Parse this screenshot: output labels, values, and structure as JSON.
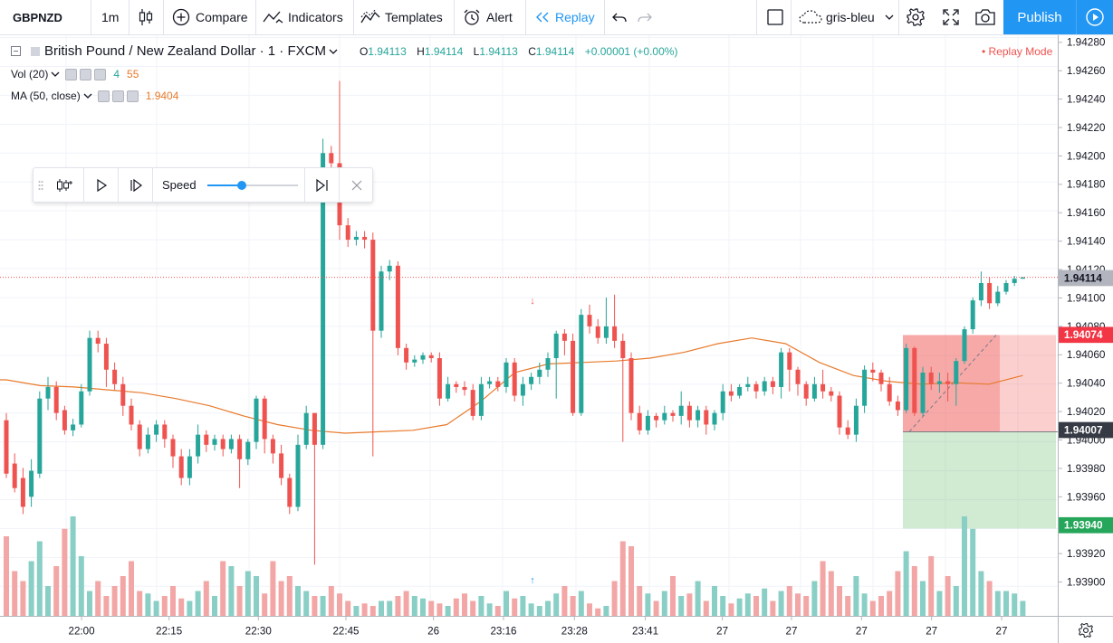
{
  "toolbar": {
    "symbol": "GBPNZD",
    "interval": "1m",
    "compare_label": "Compare",
    "indicators_label": "Indicators",
    "templates_label": "Templates",
    "alert_label": "Alert",
    "replay_label": "Replay",
    "layout_name": "gris-bleu",
    "publish_label": "Publish"
  },
  "legend": {
    "title": "British Pound / New Zealand Dollar · 1 · FXCM",
    "open_key": "O",
    "open": "1.94113",
    "high_key": "H",
    "high": "1.94114",
    "low_key": "L",
    "low": "1.94113",
    "close_key": "C",
    "close": "1.94114",
    "change": "+0.00001 (+0.00%)",
    "vol_label": "Vol (20)",
    "vol_value_1": "4",
    "vol_value_2": "55",
    "ma_label": "MA (50, close)",
    "ma_value": "1.9404",
    "replay_mode": "• Replay Mode"
  },
  "replay_panel": {
    "speed_label": "Speed",
    "speed_level": 0.38
  },
  "colors": {
    "up": "#26a69a",
    "down": "#ef5350",
    "up_vol": "#89cfc5",
    "down_vol": "#f2a6a5",
    "ma": "#e87a2b",
    "accent": "#2196f3"
  },
  "chart_data": {
    "type": "candlestick",
    "symbol": "GBPNZD",
    "interval": "1m",
    "ylim": [
      1.93872,
      1.94296
    ],
    "price_ticks": [
      "1.94280",
      "1.94260",
      "1.94240",
      "1.94220",
      "1.94200",
      "1.94180",
      "1.94160",
      "1.94140",
      "1.94120",
      "1.94100",
      "1.94080",
      "1.94060",
      "1.94040",
      "1.94020",
      "1.94000",
      "1.93980",
      "1.93960",
      "1.93940",
      "1.93920",
      "1.93900"
    ],
    "time_ticks": [
      "22:00",
      "22:15",
      "22:30",
      "22:45",
      "26",
      "23:16",
      "23:28",
      "23:41",
      "27",
      "27",
      "27",
      "27",
      "27"
    ],
    "price_labels": {
      "current": "1.94114",
      "stop": "1.94074",
      "entry": "1.94007",
      "target": "1.93940"
    },
    "position": {
      "entry": 1.94007,
      "stop": 1.94074,
      "target": 1.9394
    },
    "ma_series": [
      1.94043,
      1.94039,
      1.94038,
      1.94036,
      1.94034,
      1.9403,
      1.94025,
      1.94018,
      1.94012,
      1.94008,
      1.94006,
      1.94007,
      1.94008,
      1.94012,
      1.94028,
      1.94048,
      1.94054,
      1.94055,
      1.94056,
      1.94058,
      1.94062,
      1.94068,
      1.94072,
      1.94068,
      1.94055,
      1.94046,
      1.94042,
      1.9404,
      1.94041,
      1.9404,
      1.94046
    ],
    "candles": [
      [
        1.94015,
        1.93978,
        1.9402,
        1.93975
      ],
      [
        1.93985,
        1.93968,
        1.93992,
        1.93965
      ],
      [
        1.93975,
        1.93955,
        1.93982,
        1.9395
      ],
      [
        1.93962,
        1.9398,
        1.93988,
        1.93955
      ],
      [
        1.93978,
        1.9403,
        1.94035,
        1.93975
      ],
      [
        1.9403,
        1.94038,
        1.94045,
        1.94022
      ],
      [
        1.94038,
        1.9402,
        1.94042,
        1.94015
      ],
      [
        1.94022,
        1.94008,
        1.94025,
        1.94005
      ],
      [
        1.94008,
        1.94012,
        1.94016,
        1.94004
      ],
      [
        1.94012,
        1.94035,
        1.9404,
        1.9401
      ],
      [
        1.94035,
        1.94072,
        1.94077,
        1.94032
      ],
      [
        1.94072,
        1.94068,
        1.94077,
        1.94062
      ],
      [
        1.94068,
        1.9405,
        1.94072,
        1.94038
      ],
      [
        1.9405,
        1.9404,
        1.94055,
        1.94036
      ],
      [
        1.9404,
        1.94025,
        1.94045,
        1.94018
      ],
      [
        1.94025,
        1.94012,
        1.9403,
        1.94008
      ],
      [
        1.94012,
        1.93995,
        1.94015,
        1.9399
      ],
      [
        1.93995,
        1.94005,
        1.9401,
        1.93992
      ],
      [
        1.94005,
        1.94012,
        1.94015,
        1.94
      ],
      [
        1.94012,
        1.94002,
        1.94015,
        1.93996
      ],
      [
        1.94002,
        1.9399,
        1.94005,
        1.93982
      ],
      [
        1.9399,
        1.93975,
        1.93995,
        1.9397
      ],
      [
        1.93975,
        1.9399,
        1.93995,
        1.9397
      ],
      [
        1.9399,
        1.94005,
        1.94012,
        1.93985
      ],
      [
        1.94005,
        1.93998,
        1.94008,
        1.93993
      ],
      [
        1.93998,
        1.94002,
        1.94005,
        1.93994
      ],
      [
        1.94002,
        1.93995,
        1.94005,
        1.9399
      ],
      [
        1.93995,
        1.94002,
        1.94005,
        1.93992
      ],
      [
        1.94002,
        1.93988,
        1.94005,
        1.93968
      ],
      [
        1.93988,
        1.94,
        1.94002,
        1.93984
      ],
      [
        1.94,
        1.9403,
        1.94032,
        1.93995
      ],
      [
        1.9403,
        1.94002,
        1.94032,
        1.93992
      ],
      [
        1.94002,
        1.93992,
        1.94005,
        1.93985
      ],
      [
        1.93992,
        1.93975,
        1.93998,
        1.9397
      ],
      [
        1.93975,
        1.93955,
        1.93978,
        1.9395
      ],
      [
        1.93955,
        1.93998,
        1.94005,
        1.93952
      ],
      [
        1.93998,
        1.9402,
        1.94025,
        1.93995
      ],
      [
        1.9402,
        1.93998,
        1.9402,
        1.93915
      ],
      [
        1.93998,
        1.942,
        1.9421,
        1.93995
      ],
      [
        1.942,
        1.94193,
        1.94205,
        1.94185
      ],
      [
        1.94193,
        1.9415,
        1.9425,
        1.9414
      ],
      [
        1.9415,
        1.9414,
        1.94155,
        1.94135
      ],
      [
        1.9414,
        1.94142,
        1.94146,
        1.94136
      ],
      [
        1.94142,
        1.9414,
        1.94146,
        1.94134
      ],
      [
        1.9414,
        1.94077,
        1.94145,
        1.9399
      ],
      [
        1.94077,
        1.94118,
        1.94122,
        1.94072
      ],
      [
        1.94118,
        1.94122,
        1.94126,
        1.94112
      ],
      [
        1.94122,
        1.94065,
        1.94125,
        1.9406
      ],
      [
        1.94065,
        1.94055,
        1.94068,
        1.9405
      ],
      [
        1.94055,
        1.94057,
        1.9406,
        1.94052
      ],
      [
        1.94057,
        1.9406,
        1.94062,
        1.94054
      ],
      [
        1.9406,
        1.94058,
        1.94062,
        1.94055
      ],
      [
        1.94058,
        1.9403,
        1.94062,
        1.94025
      ],
      [
        1.9403,
        1.9404,
        1.94045,
        1.94028
      ],
      [
        1.9404,
        1.94038,
        1.94042,
        1.94034
      ],
      [
        1.94038,
        1.94036,
        1.94042,
        1.94032
      ],
      [
        1.94036,
        1.94018,
        1.9404,
        1.94015
      ],
      [
        1.94018,
        1.9404,
        1.94045,
        1.94015
      ],
      [
        1.9404,
        1.94042,
        1.94045,
        1.94037
      ],
      [
        1.94042,
        1.94038,
        1.94045,
        1.94035
      ],
      [
        1.94038,
        1.94055,
        1.94058,
        1.94034
      ],
      [
        1.94055,
        1.94032,
        1.94058,
        1.94028
      ],
      [
        1.94032,
        1.9404,
        1.94045,
        1.94025
      ],
      [
        1.9404,
        1.94045,
        1.94048,
        1.94036
      ],
      [
        1.94045,
        1.9405,
        1.94055,
        1.9404
      ],
      [
        1.9405,
        1.94058,
        1.94062,
        1.94045
      ],
      [
        1.94058,
        1.94075,
        1.94077,
        1.9403
      ],
      [
        1.94075,
        1.9407,
        1.94078,
        1.9406
      ],
      [
        1.9407,
        1.9402,
        1.94075,
        1.94018
      ],
      [
        1.9402,
        1.94088,
        1.94092,
        1.94018
      ],
      [
        1.94088,
        1.9408,
        1.94095,
        1.94075
      ],
      [
        1.9408,
        1.94072,
        1.94085,
        1.94068
      ],
      [
        1.94072,
        1.9408,
        1.941,
        1.94068
      ],
      [
        1.9408,
        1.9407,
        1.94102,
        1.94065
      ],
      [
        1.9407,
        1.94058,
        1.94075,
        1.94
      ],
      [
        1.94058,
        1.9402,
        1.94062,
        1.94015
      ],
      [
        1.9402,
        1.94008,
        1.94025,
        1.94005
      ],
      [
        1.94008,
        1.94018,
        1.94022,
        1.94005
      ],
      [
        1.94018,
        1.94015,
        1.9402,
        1.9401
      ],
      [
        1.94015,
        1.9402,
        1.94025,
        1.94012
      ],
      [
        1.9402,
        1.94018,
        1.94022,
        1.94014
      ],
      [
        1.94018,
        1.94025,
        1.94035,
        1.94012
      ],
      [
        1.94025,
        1.94015,
        1.94028,
        1.9401
      ],
      [
        1.94015,
        1.94022,
        1.94025,
        1.9401
      ],
      [
        1.94022,
        1.94012,
        1.94025,
        1.94005
      ],
      [
        1.94012,
        1.9402,
        1.94022,
        1.94008
      ],
      [
        1.9402,
        1.94035,
        1.9404,
        1.94015
      ],
      [
        1.94035,
        1.94032,
        1.9404,
        1.94028
      ],
      [
        1.94032,
        1.94038,
        1.9404,
        1.9403
      ],
      [
        1.94038,
        1.9404,
        1.94045,
        1.94035
      ],
      [
        1.9404,
        1.94035,
        1.94042,
        1.9403
      ],
      [
        1.94035,
        1.94042,
        1.94045,
        1.94032
      ],
      [
        1.94042,
        1.94038,
        1.94045,
        1.94033
      ],
      [
        1.94038,
        1.94062,
        1.94065,
        1.9403
      ],
      [
        1.94062,
        1.9405,
        1.94065,
        1.94035
      ],
      [
        1.9405,
        1.9404,
        1.94052,
        1.94032
      ],
      [
        1.9404,
        1.9403,
        1.94042,
        1.94025
      ],
      [
        1.9403,
        1.9404,
        1.94045,
        1.94028
      ],
      [
        1.9404,
        1.94035,
        1.9405,
        1.9403
      ],
      [
        1.94035,
        1.94032,
        1.94038,
        1.94028
      ],
      [
        1.94032,
        1.9401,
        1.94035,
        1.94005
      ],
      [
        1.9401,
        1.94005,
        1.94015,
        1.94002
      ],
      [
        1.94005,
        1.94025,
        1.9403,
        1.94
      ],
      [
        1.94025,
        1.9405,
        1.94053,
        1.9402
      ],
      [
        1.9405,
        1.94048,
        1.94055,
        1.94042
      ],
      [
        1.94048,
        1.9404,
        1.9405,
        1.94035
      ],
      [
        1.9404,
        1.94028,
        1.94045,
        1.94025
      ],
      [
        1.94028,
        1.94022,
        1.94032,
        1.94018
      ],
      [
        1.94022,
        1.94065,
        1.94068,
        1.9402
      ],
      [
        1.94065,
        1.9402,
        1.94066,
        1.94018
      ],
      [
        1.9402,
        1.94048,
        1.94052,
        1.94018
      ],
      [
        1.94048,
        1.9404,
        1.94052,
        1.94036
      ],
      [
        1.9404,
        1.94042,
        1.94048,
        1.94034
      ],
      [
        1.94042,
        1.9404,
        1.94048,
        1.94028
      ],
      [
        1.9404,
        1.94056,
        1.94058,
        1.94025
      ],
      [
        1.94056,
        1.94078,
        1.9408,
        1.94054
      ],
      [
        1.94078,
        1.94098,
        1.941,
        1.94075
      ],
      [
        1.94098,
        1.9411,
        1.94118,
        1.94094
      ],
      [
        1.9411,
        1.94096,
        1.94114,
        1.94092
      ],
      [
        1.94096,
        1.94104,
        1.94108,
        1.94094
      ],
      [
        1.94104,
        1.9411,
        1.94112,
        1.94102
      ],
      [
        1.9411,
        1.94113,
        1.94115,
        1.94108
      ],
      [
        1.94113,
        1.94114,
        1.94114,
        1.94113
      ]
    ],
    "volumes": [
      32,
      18,
      14,
      22,
      30,
      12,
      20,
      35,
      40,
      24,
      10,
      14,
      8,
      12,
      16,
      22,
      10,
      9,
      6,
      8,
      12,
      7,
      6,
      10,
      14,
      8,
      22,
      20,
      12,
      18,
      16,
      9,
      22,
      14,
      16,
      12,
      10,
      8,
      8,
      12,
      9,
      6,
      4,
      5,
      4,
      6,
      6,
      8,
      10,
      8,
      7,
      6,
      5,
      4,
      7,
      9,
      6,
      8,
      5,
      4,
      10,
      7,
      8,
      5,
      4,
      6,
      9,
      12,
      8,
      10,
      5,
      3,
      4,
      14,
      30,
      28,
      12,
      9,
      6,
      10,
      16,
      8,
      9,
      14,
      6,
      12,
      8,
      5,
      7,
      9,
      8,
      11,
      6,
      10,
      12,
      9,
      8,
      14,
      22,
      18,
      12,
      8,
      16,
      9,
      6,
      8,
      10,
      18,
      26,
      20,
      14,
      24,
      10,
      16,
      12,
      40,
      35,
      18,
      14,
      10,
      10,
      9,
      6,
      5,
      4
    ]
  }
}
